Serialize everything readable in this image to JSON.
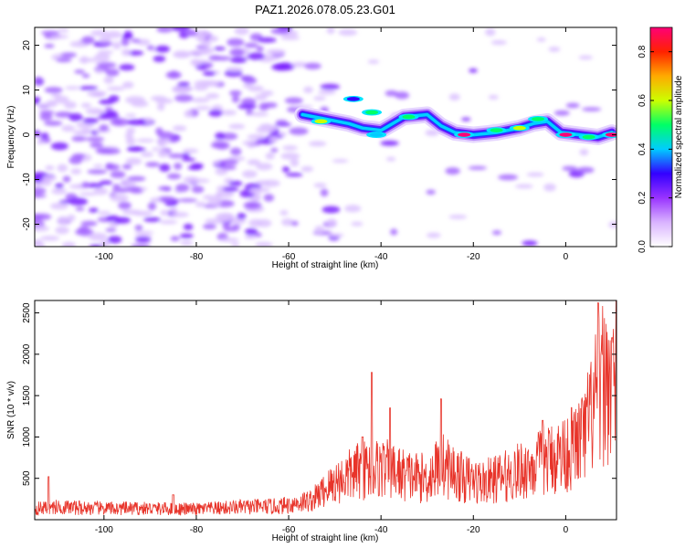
{
  "title": "PAZ1.2026.078.05.23.G01",
  "chart_data": [
    {
      "type": "heatmap",
      "name": "spectrogram",
      "xlabel": "Height of straight line (km)",
      "ylabel": "Frequency (Hz)",
      "xlim": [
        -115,
        11
      ],
      "ylim": [
        -25,
        24
      ],
      "xticks": [
        -100,
        -80,
        -60,
        -40,
        -20,
        0
      ],
      "yticks": [
        -20,
        -10,
        0,
        10,
        20
      ],
      "colorbar": {
        "label": "Normalized spectral amplitude",
        "range": [
          0,
          0.9
        ],
        "ticks": [
          "0.0",
          "0.2",
          "0.4",
          "0.6",
          "0.8"
        ],
        "tick_values": [
          0,
          0.2,
          0.4,
          0.6,
          0.8
        ],
        "colors": [
          "#ffffff",
          "#d9b3ff",
          "#9933ff",
          "#3300ff",
          "#00ccff",
          "#00ff66",
          "#ccff00",
          "#ffaa00",
          "#ff2200",
          "#ff0077"
        ]
      },
      "ridge": [
        {
          "x": -57,
          "f": 4.5
        },
        {
          "x": -52,
          "f": 3.5
        },
        {
          "x": -47,
          "f": 2.5
        },
        {
          "x": -44,
          "f": 1.5
        },
        {
          "x": -40,
          "f": 1.0
        },
        {
          "x": -35,
          "f": 4.0
        },
        {
          "x": -30,
          "f": 4.5
        },
        {
          "x": -27,
          "f": 2.0
        },
        {
          "x": -24,
          "f": 0.5
        },
        {
          "x": -20,
          "f": 0.0
        },
        {
          "x": -15,
          "f": 0.5
        },
        {
          "x": -10,
          "f": 1.5
        },
        {
          "x": -7,
          "f": 2.5
        },
        {
          "x": -4,
          "f": 3.0
        },
        {
          "x": -1,
          "f": 0.5
        },
        {
          "x": 3,
          "f": 0.0
        },
        {
          "x": 7,
          "f": -0.5
        },
        {
          "x": 10,
          "f": 0.5
        }
      ],
      "hotspots": [
        {
          "x": -53,
          "f": 3.0,
          "amp": 0.55
        },
        {
          "x": -46,
          "f": 8.0,
          "amp": 0.35
        },
        {
          "x": -42,
          "f": 5.0,
          "amp": 0.45
        },
        {
          "x": -41,
          "f": 0.0,
          "amp": 0.4
        },
        {
          "x": -34,
          "f": 4.0,
          "amp": 0.5
        },
        {
          "x": -22,
          "f": 0.0,
          "amp": 0.85
        },
        {
          "x": -15,
          "f": 1.0,
          "amp": 0.5
        },
        {
          "x": -10,
          "f": 1.5,
          "amp": 0.55
        },
        {
          "x": -6,
          "f": 3.5,
          "amp": 0.5
        },
        {
          "x": 0,
          "f": 0.0,
          "amp": 0.9
        },
        {
          "x": 5,
          "f": -0.5,
          "amp": 0.5
        },
        {
          "x": 10,
          "f": 0.0,
          "amp": 0.9
        }
      ]
    },
    {
      "type": "line",
      "name": "snr",
      "xlabel": "Height of straight line (km)",
      "ylabel": "SNR (10 * v/v)",
      "xlim": [
        -115,
        11
      ],
      "ylim": [
        0,
        2650
      ],
      "xticks": [
        -100,
        -80,
        -60,
        -40,
        -20,
        0
      ],
      "yticks": [
        500,
        1000,
        1500,
        2000,
        2500
      ],
      "color": "#e8342a",
      "envelope": [
        {
          "x": -115,
          "y": 150
        },
        {
          "x": -110,
          "y": 170
        },
        {
          "x": -100,
          "y": 150
        },
        {
          "x": -90,
          "y": 150
        },
        {
          "x": -80,
          "y": 140
        },
        {
          "x": -70,
          "y": 170
        },
        {
          "x": -62,
          "y": 180
        },
        {
          "x": -55,
          "y": 260
        },
        {
          "x": -50,
          "y": 500
        },
        {
          "x": -45,
          "y": 650
        },
        {
          "x": -40,
          "y": 700
        },
        {
          "x": -35,
          "y": 600
        },
        {
          "x": -30,
          "y": 550
        },
        {
          "x": -27,
          "y": 750
        },
        {
          "x": -22,
          "y": 550
        },
        {
          "x": -18,
          "y": 500
        },
        {
          "x": -12,
          "y": 600
        },
        {
          "x": -6,
          "y": 750
        },
        {
          "x": 0,
          "y": 900
        },
        {
          "x": 4,
          "y": 1100
        },
        {
          "x": 6,
          "y": 1500
        },
        {
          "x": 8,
          "y": 1800
        },
        {
          "x": 11,
          "y": 1900
        }
      ],
      "spikes": [
        {
          "x": -112,
          "y": 520
        },
        {
          "x": -85,
          "y": 300
        },
        {
          "x": -44,
          "y": 1000
        },
        {
          "x": -42,
          "y": 1780
        },
        {
          "x": -38,
          "y": 1350
        },
        {
          "x": -27,
          "y": 1460
        },
        {
          "x": -5,
          "y": 1200
        },
        {
          "x": 7,
          "y": 2620
        },
        {
          "x": 10,
          "y": 2200
        }
      ]
    }
  ]
}
